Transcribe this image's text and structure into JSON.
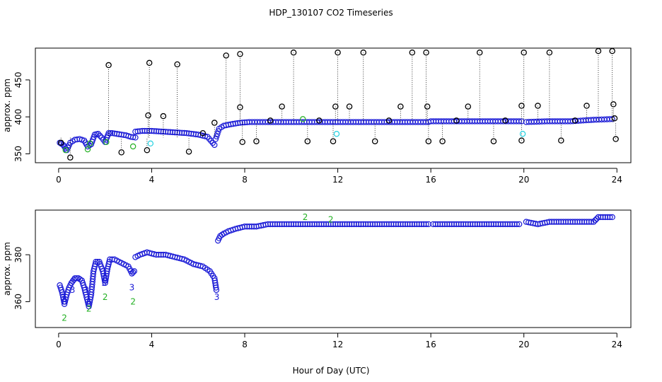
{
  "figure": {
    "title": "HDP_130107  CO2 Timeseries",
    "xlabel": "Hour of Day (UTC)"
  },
  "colors": {
    "blue_series": "#1a1ad6",
    "green_series": "#22b022",
    "cyan_series": "#22d0e0",
    "black_series": "#000000"
  },
  "chart_data": [
    {
      "type": "scatter",
      "panel": "top",
      "xlabel": "",
      "ylabel": "approx. ppm",
      "xlim": [
        -1,
        24.6
      ],
      "ylim": [
        338,
        493
      ],
      "x_ticks": [
        0,
        4,
        8,
        12,
        16,
        20,
        24
      ],
      "y_ticks": [
        350,
        400,
        450
      ],
      "grid": false,
      "legend": "none",
      "series": [
        {
          "color": "blue_series",
          "marker": "circle",
          "segments": [
            {
              "x": [
                0.05,
                0.2,
                0.35,
                0.5,
                0.7,
                0.9,
                1.1,
                1.25,
                1.4,
                1.55,
                1.7,
                1.85,
                2.0,
                2.15,
                2.3,
                2.5,
                2.7,
                2.9,
                3.1,
                3.3
              ],
              "y": [
                365,
                362,
                355,
                365,
                369,
                370,
                368,
                360,
                363,
                376,
                377,
                372,
                366,
                378,
                378,
                377,
                376,
                375,
                373,
                372
              ]
            },
            {
              "x": [
                3.3,
                3.6,
                4.0,
                4.5,
                5.0,
                5.5,
                6.0,
                6.4,
                6.7
              ],
              "y": [
                380,
                381,
                381,
                380,
                379,
                378,
                376,
                373,
                362
              ]
            },
            {
              "x": [
                6.75,
                6.9,
                7.1,
                7.4,
                7.8,
                8.2,
                9.0,
                10.0,
                11.0,
                11.9
              ],
              "y": [
                370,
                384,
                388,
                390,
                392,
                393,
                393,
                393,
                393,
                393
              ]
            },
            {
              "x": [
                12.0,
                13.0,
                14.0,
                15.0,
                15.9
              ],
              "y": [
                393,
                393,
                393,
                393,
                393
              ]
            },
            {
              "x": [
                16.0,
                17.0,
                18.0,
                19.0,
                19.9
              ],
              "y": [
                394,
                394,
                394,
                394,
                394
              ]
            },
            {
              "x": [
                20.1,
                21.0,
                22.0,
                23.0,
                23.8
              ],
              "y": [
                393,
                394,
                394,
                396,
                397
              ]
            }
          ]
        },
        {
          "color": "black_series",
          "marker": "circle",
          "x": [
            0.1,
            0.5,
            2.15,
            2.7,
            3.8,
            3.85,
            3.9,
            4.5,
            5.1,
            5.6,
            6.2,
            6.7,
            7.2,
            7.8,
            7.8,
            7.9,
            8.5,
            9.1,
            9.6,
            10.1,
            10.7,
            11.2,
            11.8,
            11.9,
            12.0,
            12.5,
            13.1,
            13.6,
            14.2,
            14.7,
            15.2,
            15.8,
            15.85,
            15.9,
            16.5,
            17.1,
            17.6,
            18.1,
            18.7,
            19.2,
            19.9,
            19.9,
            20.0,
            20.6,
            21.1,
            21.6,
            22.2,
            22.7,
            23.2,
            23.8,
            23.85,
            23.9,
            23.95
          ],
          "y": [
            365,
            345,
            470,
            352,
            355,
            402,
            473,
            401,
            471,
            353,
            378,
            392,
            483,
            485,
            413,
            366,
            367,
            395,
            414,
            487,
            367,
            395,
            367,
            414,
            487,
            414,
            487,
            367,
            395,
            414,
            487,
            487,
            414,
            367,
            367,
            395,
            414,
            487,
            367,
            395,
            368,
            415,
            487,
            415,
            487,
            368,
            395,
            415,
            489,
            489,
            417,
            398,
            370
          ]
        },
        {
          "color": "cyan_series",
          "marker": "circle",
          "x": [
            3.95,
            11.95,
            19.95
          ],
          "y": [
            364,
            377,
            377
          ]
        },
        {
          "color": "green_series",
          "marker": "circle",
          "x": [
            0.3,
            1.25,
            1.35,
            2.05,
            3.2,
            10.5
          ],
          "y": [
            355,
            356,
            364,
            366,
            360,
            397
          ]
        }
      ]
    },
    {
      "type": "scatter",
      "panel": "bottom",
      "xlabel": "",
      "ylabel": "approx. ppm",
      "xlim": [
        -1,
        24.6
      ],
      "ylim": [
        349,
        399
      ],
      "x_ticks": [
        0,
        4,
        8,
        12,
        16,
        20,
        24
      ],
      "y_ticks": [
        360,
        380
      ],
      "grid": false,
      "legend": "none",
      "series": [
        {
          "color": "blue_series",
          "marker": "circle",
          "segments": [
            {
              "x": [
                0.05,
                0.15,
                0.25,
                0.35,
                0.45,
                0.55,
                0.7,
                0.85,
                1.0,
                1.1,
                1.2,
                1.3,
                1.4,
                1.5,
                1.6,
                1.75,
                1.9,
                2.0,
                2.1,
                2.2,
                2.4,
                2.6,
                2.8,
                3.0,
                3.15,
                3.25
              ],
              "y": [
                367,
                364,
                359,
                363,
                366,
                368,
                370,
                370,
                369,
                366,
                362,
                358,
                363,
                373,
                377,
                377,
                373,
                368,
                374,
                378,
                378,
                377,
                376,
                375,
                372,
                373
              ]
            },
            {
              "x": [
                3.3,
                3.5,
                3.8,
                4.2,
                4.6,
                5.0,
                5.4,
                5.8,
                6.2,
                6.5,
                6.7,
                6.78
              ],
              "y": [
                379,
                380,
                381,
                380,
                380,
                379,
                378,
                376,
                375,
                373,
                370,
                365
              ]
            },
            {
              "x": [
                6.85,
                6.95,
                7.1,
                7.3,
                7.6,
                8.0,
                8.5,
                9.0,
                9.5,
                10.0,
                10.5,
                11.0,
                11.5,
                11.9
              ],
              "y": [
                386,
                388,
                389,
                390,
                391,
                392,
                392,
                393,
                393,
                393,
                393,
                393,
                393,
                393
              ]
            },
            {
              "x": [
                12.0,
                12.5,
                13.0,
                13.5,
                14.0,
                14.5,
                15.0,
                15.5,
                15.9
              ],
              "y": [
                393,
                393,
                393,
                393,
                393,
                393,
                393,
                393,
                393
              ]
            },
            {
              "x": [
                16.1,
                16.6,
                17.1,
                17.6,
                18.1,
                18.6,
                19.1,
                19.6,
                19.8
              ],
              "y": [
                393,
                393,
                393,
                393,
                393,
                393,
                393,
                393,
                393
              ]
            },
            {
              "x": [
                20.1,
                20.6,
                21.1,
                21.6,
                22.1,
                22.6,
                23.0,
                23.2,
                23.5,
                23.8
              ],
              "y": [
                394,
                393,
                394,
                394,
                394,
                394,
                394,
                396,
                396,
                396
              ]
            }
          ]
        },
        {
          "color": "green_series",
          "marker": "digit",
          "glyph": "2",
          "x": [
            0.25,
            1.3,
            2.0,
            3.2,
            10.6,
            11.7
          ],
          "y": [
            353,
            357,
            362,
            360,
            396,
            395
          ]
        },
        {
          "color": "blue_series",
          "marker": "digit",
          "glyph": "3",
          "x": [
            0.2,
            0.6,
            1.2,
            1.95,
            3.15,
            6.8
          ],
          "y": [
            362,
            365,
            365,
            368,
            366,
            362
          ]
        }
      ]
    }
  ]
}
